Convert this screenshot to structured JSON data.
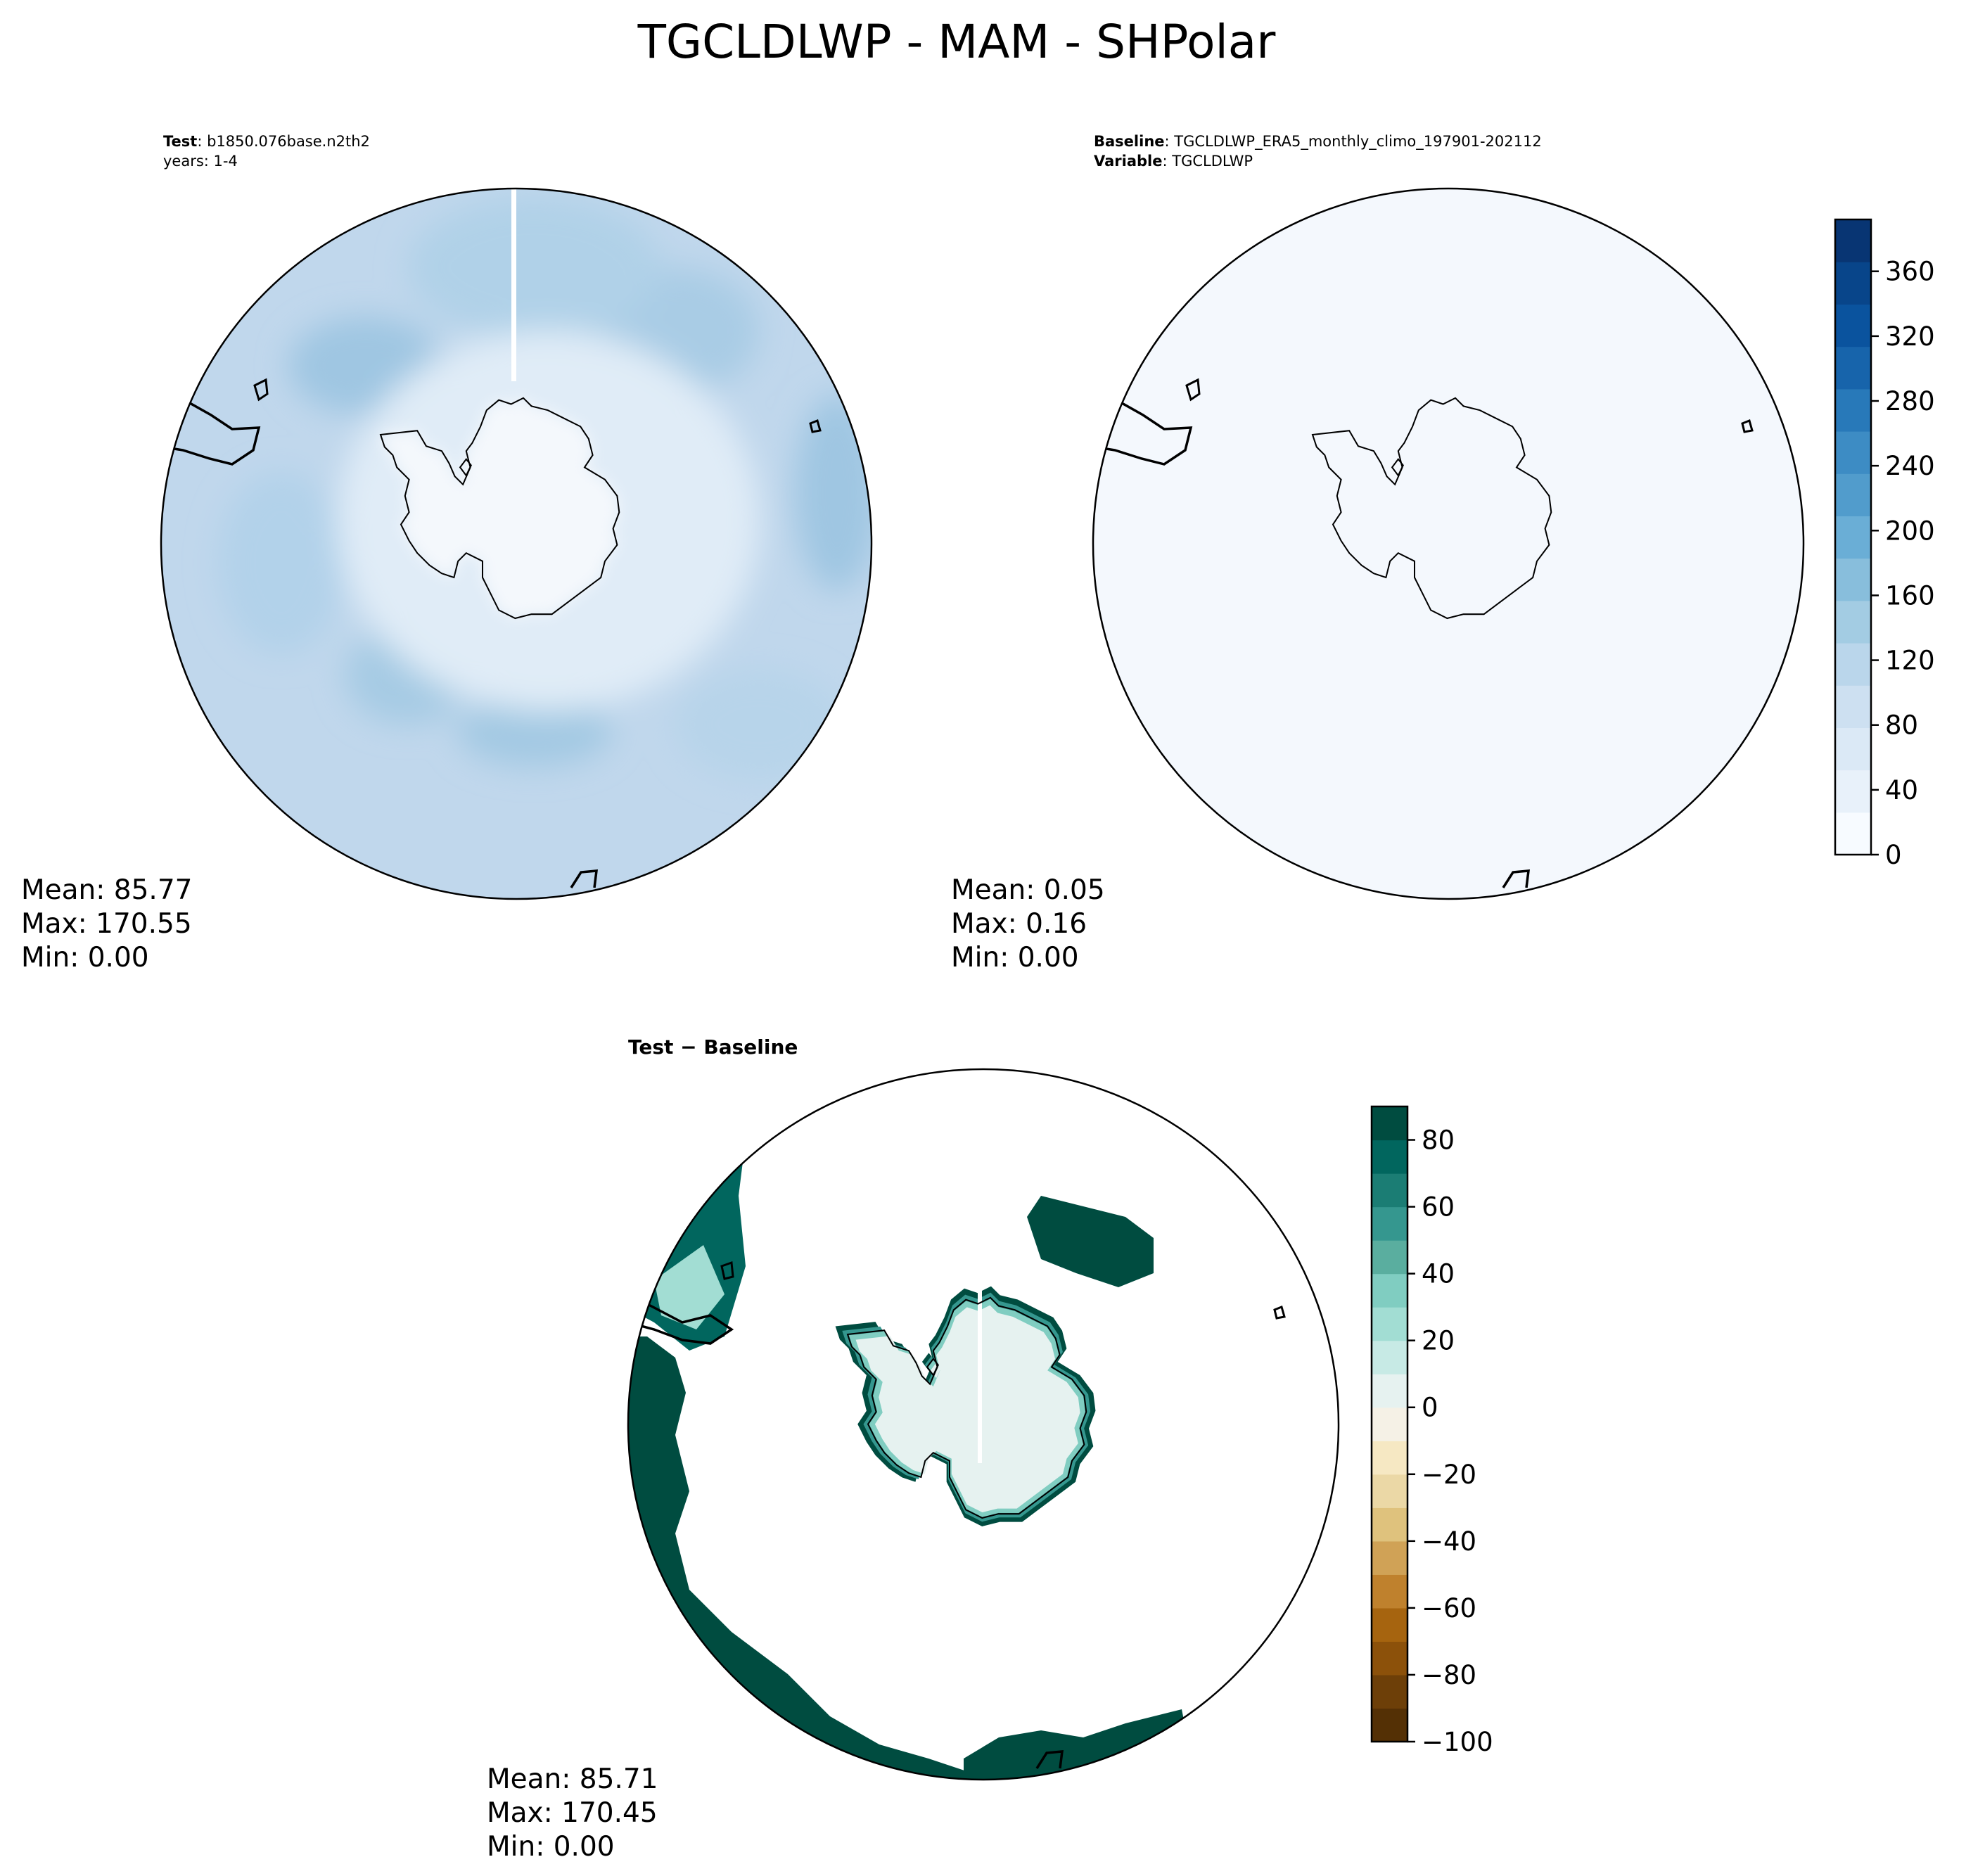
{
  "title": "TGCLDLWP - MAM - SHPolar",
  "test_panel": {
    "label": "Test",
    "case": ": b1850.076base.n2th2",
    "years": "years: 1-4",
    "stats": {
      "mean": "Mean: 85.77",
      "max": "Max: 170.55",
      "min": "Min:  0.00"
    }
  },
  "baseline_panel": {
    "label": "Baseline",
    "case": ": TGCLDLWP_ERA5_monthly_climo_197901-202112",
    "variable_label": "Variable",
    "variable": ": TGCLDLWP",
    "stats": {
      "mean": "Mean:  0.05",
      "max": "Max:  0.16",
      "min": "Min:  0.00"
    }
  },
  "diff_panel": {
    "title": "Test − Baseline",
    "stats": {
      "mean": "Mean: 85.71",
      "max": "Max: 170.45",
      "min": "Min:  0.00"
    }
  },
  "colorbar_main": {
    "ticks": [
      "0",
      "40",
      "80",
      "120",
      "160",
      "200",
      "240",
      "280",
      "320",
      "360"
    ],
    "tick_values": [
      0,
      40,
      80,
      120,
      160,
      200,
      240,
      280,
      320,
      360
    ],
    "range": [
      0,
      392
    ],
    "colors": [
      "#f7fbff",
      "#e8f1fa",
      "#dbe9f6",
      "#cde0f1",
      "#bad6eb",
      "#a3cce3",
      "#88bedc",
      "#6aaed6",
      "#519ccc",
      "#3d8cc4",
      "#2879b9",
      "#1764ab",
      "#0a539e",
      "#08458a",
      "#083573"
    ]
  },
  "colorbar_diff": {
    "ticks": [
      "80",
      "60",
      "40",
      "20",
      "0",
      "−20",
      "−40",
      "−60",
      "−80",
      "−100"
    ],
    "tick_values": [
      80,
      60,
      40,
      20,
      0,
      -20,
      -40,
      -60,
      -80,
      -100
    ],
    "range": [
      -100,
      90
    ],
    "colors": [
      "#543005",
      "#6d3f08",
      "#8c510a",
      "#a6640f",
      "#bf812d",
      "#d0a256",
      "#dfc27d",
      "#ebd8a6",
      "#f6e8c3",
      "#f5f1e6",
      "#e6f2f0",
      "#c7eae5",
      "#a2ddd3",
      "#80cdc1",
      "#5aae9f",
      "#35978f",
      "#1b7d74",
      "#01665e",
      "#004c40"
    ]
  }
}
